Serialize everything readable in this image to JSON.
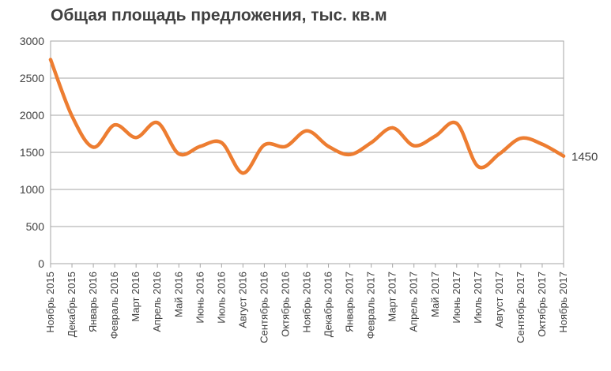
{
  "chart_data": {
    "type": "line",
    "title": "Общая площадь предложения, тыс. кв.м",
    "xlabel": "",
    "ylabel": "",
    "ylim": [
      0,
      3000
    ],
    "yticks": [
      "0",
      "500",
      "1000",
      "1500",
      "2000",
      "2500",
      "3000"
    ],
    "grid": true,
    "legend": "none",
    "line_color": "#ED7D31",
    "categories": [
      "Ноябрь 2015",
      "Декабрь 2015",
      "Январь 2016",
      "Февраль 2016",
      "Март 2016",
      "Апрель 2016",
      "Май 2016",
      "Июнь 2016",
      "Июль 2016",
      "Август 2016",
      "Сентябрь 2016",
      "Октябрь 2016",
      "Ноябрь 2016",
      "Декабрь 2016",
      "Январь 2017",
      "Февраль 2017",
      "Март 2017",
      "Апрель 2017",
      "Май 2017",
      "Июнь 2017",
      "Июль 2017",
      "Август 2017",
      "Сентябрь 2017",
      "Октябрь 2017",
      "Ноябрь 2017"
    ],
    "series": [
      {
        "values": [
          2750,
          1990,
          1570,
          1870,
          1700,
          1900,
          1480,
          1580,
          1630,
          1220,
          1600,
          1580,
          1790,
          1580,
          1470,
          1630,
          1830,
          1590,
          1720,
          1890,
          1310,
          1480,
          1690,
          1610,
          1450
        ]
      }
    ],
    "end_label": "1450"
  }
}
